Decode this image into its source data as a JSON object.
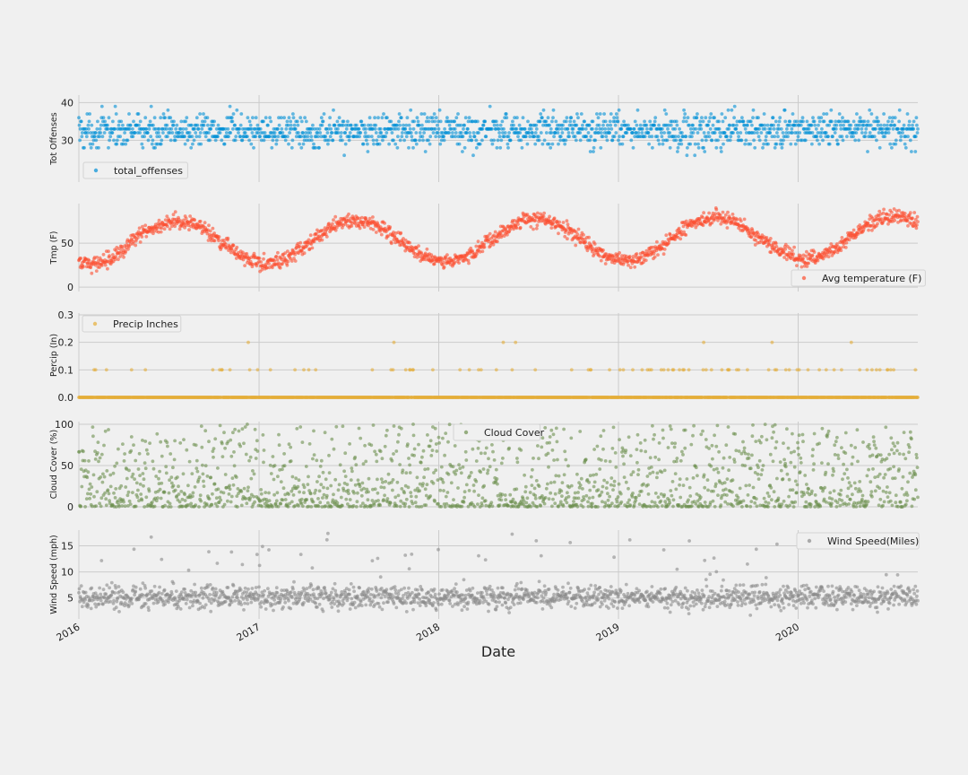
{
  "chart_data": [
    {
      "type": "scatter",
      "ylabel": "Tot Offenses",
      "ylim": [
        22,
        42
      ],
      "yticks": [
        30,
        40
      ],
      "legend": "total_offenses",
      "legend_position": "lower-left",
      "color": "#008fd5",
      "x_range": [
        "2016-01-01",
        "2020-08-31"
      ],
      "series": [
        {
          "name": "total_offenses",
          "model": "daily values, mostly 28–38, range 23–42"
        }
      ],
      "grid": true
    },
    {
      "type": "scatter",
      "ylabel": "Tmp (F)",
      "ylim": [
        -5,
        95
      ],
      "yticks": [
        0,
        50
      ],
      "legend": "Avg temperature (F)",
      "legend_position": "lower-right",
      "color": "#fc4f30",
      "x_range": [
        "2016-01-01",
        "2020-08-31"
      ],
      "series": [
        {
          "name": "Avg temperature (F)",
          "model": "seasonal: ~25–35 in winter, ~70–85 in summer"
        }
      ],
      "grid": true
    },
    {
      "type": "scatter",
      "ylabel": "Percip (In)",
      "ylim": [
        0,
        0.3
      ],
      "yticks": [
        0.0,
        0.1,
        0.2,
        0.3
      ],
      "legend": "Precip Inches",
      "legend_position": "upper-left",
      "color": "#e5ae38",
      "x_range": [
        "2016-01-01",
        "2020-08-31"
      ],
      "series": [
        {
          "name": "Precip Inches",
          "model": "mostly 0.0; scattered 0.1, few 0.2, one 0.3"
        }
      ],
      "grid": true
    },
    {
      "type": "scatter",
      "ylabel": "Cloud Cover (%)",
      "ylim": [
        0,
        100
      ],
      "yticks": [
        0,
        50,
        100
      ],
      "legend": "Cloud Cover",
      "legend_position": "upper-center",
      "color": "#6d904f",
      "x_range": [
        "2016-01-01",
        "2020-08-31"
      ],
      "series": [
        {
          "name": "Cloud Cover",
          "model": "skewed toward 0–30, up to 100"
        }
      ],
      "grid": true
    },
    {
      "type": "scatter",
      "ylabel": "Wind Speed (mph)",
      "ylim": [
        1,
        18
      ],
      "yticks": [
        5,
        10,
        15
      ],
      "legend": "Wind Speed(Miles)",
      "legend_position": "upper-right",
      "color": "#8b8b8b",
      "x_range": [
        "2016-01-01",
        "2020-08-31"
      ],
      "series": [
        {
          "name": "Wind Speed(Miles)",
          "model": "mostly 3–8, up to 17"
        }
      ],
      "grid": true
    }
  ],
  "x_axis": {
    "xlabel": "Date",
    "ticks": [
      {
        "label": "2016",
        "date": "2016-01-01"
      },
      {
        "label": "2017",
        "date": "2017-01-01"
      },
      {
        "label": "2018",
        "date": "2018-01-01"
      },
      {
        "label": "2019",
        "date": "2019-01-01"
      },
      {
        "label": "2020",
        "date": "2020-01-01"
      }
    ]
  },
  "ytick_labels": [
    [
      "30",
      "40"
    ],
    [
      "0",
      "50"
    ],
    [
      "0.0",
      "0.1",
      "0.2",
      "0.3"
    ],
    [
      "0",
      "50",
      "100"
    ],
    [
      "5",
      "10",
      "15"
    ]
  ]
}
